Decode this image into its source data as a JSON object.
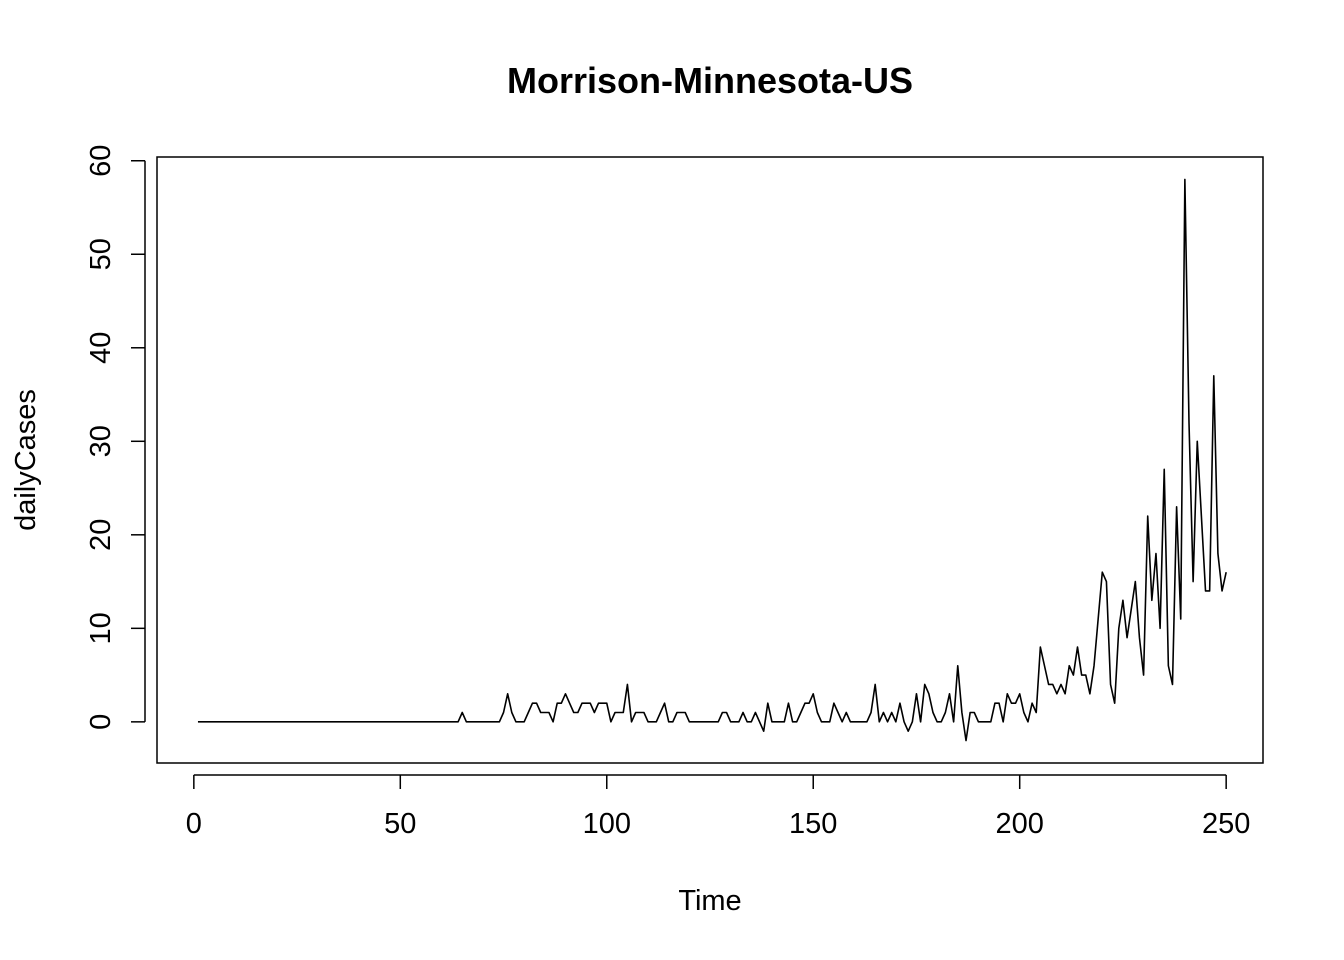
{
  "chart_data": {
    "type": "line",
    "title": "Morrison-Minnesota-US",
    "xlabel": "Time",
    "ylabel": "dailyCases",
    "xlim": [
      -8.92,
      258.92
    ],
    "ylim": [
      -4.4,
      60.4
    ],
    "xticks": [
      0,
      50,
      100,
      150,
      200,
      250
    ],
    "yticks": [
      0,
      10,
      20,
      30,
      40,
      50,
      60
    ],
    "grid": false,
    "legend": "none",
    "series": [
      {
        "color": "#000000",
        "values": [
          0,
          0,
          0,
          0,
          0,
          0,
          0,
          0,
          0,
          0,
          0,
          0,
          0,
          0,
          0,
          0,
          0,
          0,
          0,
          0,
          0,
          0,
          0,
          0,
          0,
          0,
          0,
          0,
          0,
          0,
          0,
          0,
          0,
          0,
          0,
          0,
          0,
          0,
          0,
          0,
          0,
          0,
          0,
          0,
          0,
          0,
          0,
          0,
          0,
          0,
          0,
          0,
          0,
          0,
          0,
          0,
          0,
          0,
          0,
          0,
          0,
          0,
          0,
          0,
          1,
          0,
          0,
          0,
          0,
          0,
          0,
          0,
          0,
          0,
          1,
          3,
          1,
          0,
          0,
          0,
          1,
          2,
          2,
          1,
          1,
          1,
          0,
          2,
          2,
          3,
          2,
          1,
          1,
          2,
          2,
          2,
          1,
          2,
          2,
          2,
          0,
          1,
          1,
          1,
          4,
          0,
          1,
          1,
          1,
          0,
          0,
          0,
          1,
          2,
          0,
          0,
          1,
          1,
          1,
          0,
          0,
          0,
          0,
          0,
          0,
          0,
          0,
          1,
          1,
          0,
          0,
          0,
          1,
          0,
          0,
          1,
          0,
          -1,
          2,
          0,
          0,
          0,
          0,
          2,
          0,
          0,
          1,
          2,
          2,
          3,
          1,
          0,
          0,
          0,
          2,
          1,
          0,
          1,
          0,
          0,
          0,
          0,
          0,
          1,
          4,
          0,
          1,
          0,
          1,
          0,
          2,
          0,
          -1,
          0,
          3,
          0,
          4,
          3,
          1,
          0,
          0,
          1,
          3,
          0,
          6,
          1,
          -2,
          1,
          1,
          0,
          0,
          0,
          0,
          2,
          2,
          0,
          3,
          2,
          2,
          3,
          1,
          0,
          2,
          1,
          8,
          6,
          4,
          4,
          3,
          4,
          3,
          6,
          5,
          8,
          5,
          5,
          3,
          6,
          11,
          16,
          15,
          4,
          2,
          10,
          13,
          9,
          12,
          15,
          9,
          5,
          22,
          13,
          18,
          10,
          27,
          6,
          4,
          23,
          11,
          58,
          32,
          15,
          30,
          22,
          14,
          14,
          37,
          18,
          14,
          16
        ]
      }
    ]
  }
}
